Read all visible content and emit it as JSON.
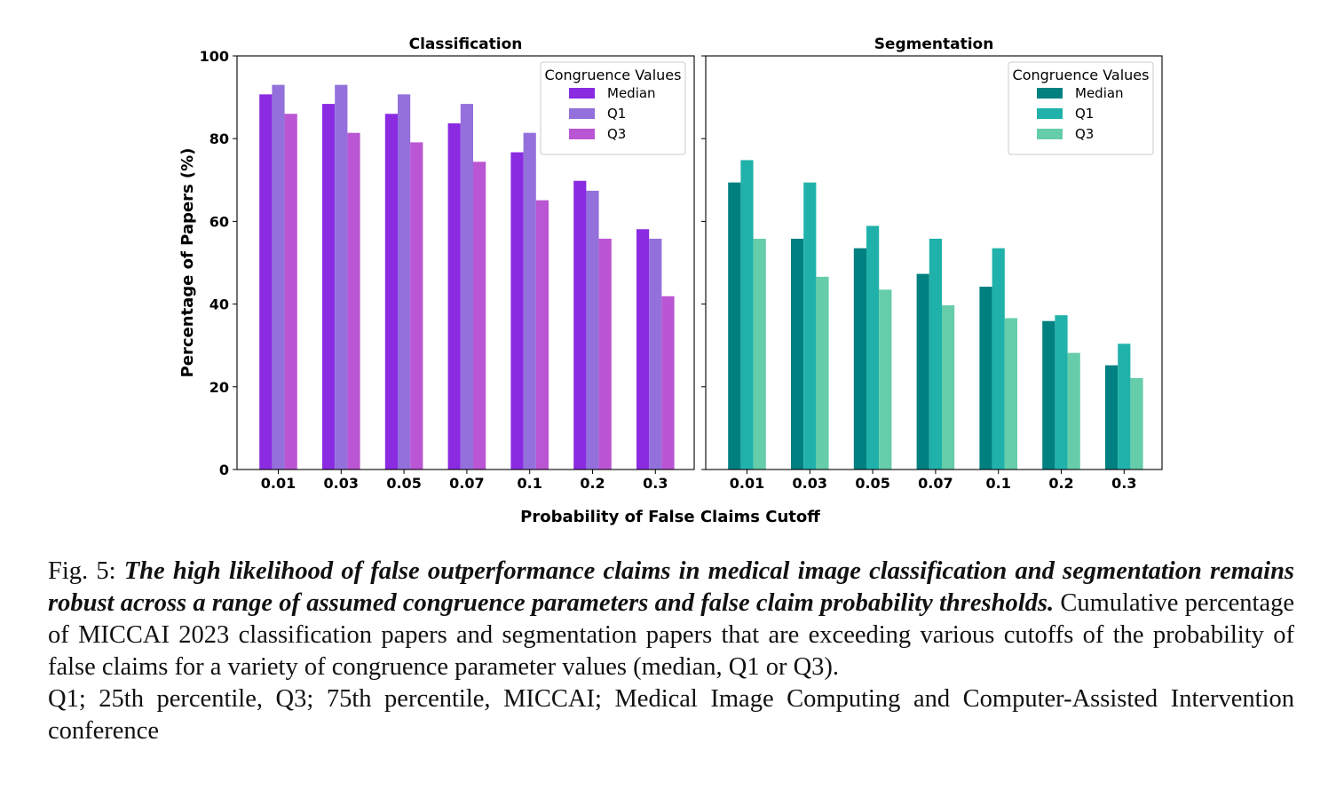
{
  "chart_data": [
    {
      "type": "bar",
      "title": "Classification",
      "categories": [
        "0.01",
        "0.03",
        "0.05",
        "0.07",
        "0.1",
        "0.2",
        "0.3"
      ],
      "series": [
        {
          "name": "Median",
          "color": "#8a2be2",
          "values": [
            90.7,
            88.4,
            86.0,
            83.7,
            76.7,
            69.8,
            58.1
          ]
        },
        {
          "name": "Q1",
          "color": "#9370db",
          "values": [
            93.0,
            93.0,
            90.7,
            88.4,
            81.4,
            67.4,
            55.8
          ]
        },
        {
          "name": "Q3",
          "color": "#ba55d3",
          "values": [
            86.0,
            81.4,
            79.1,
            74.4,
            65.1,
            55.8,
            41.9
          ]
        }
      ],
      "legend_title": "Congruence Values",
      "legend_position": "upper right",
      "ylim": [
        0,
        100
      ],
      "yticks": [
        0,
        20,
        40,
        60,
        80,
        100
      ],
      "ylabel": "Percentage of Papers (%)"
    },
    {
      "type": "bar",
      "title": "Segmentation",
      "categories": [
        "0.01",
        "0.03",
        "0.05",
        "0.07",
        "0.1",
        "0.2",
        "0.3"
      ],
      "series": [
        {
          "name": "Median",
          "color": "#008080",
          "values": [
            69.4,
            55.8,
            53.5,
            47.3,
            44.2,
            35.9,
            25.2
          ]
        },
        {
          "name": "Q1",
          "color": "#20b2aa",
          "values": [
            74.8,
            69.4,
            58.9,
            55.8,
            53.5,
            37.3,
            30.4
          ]
        },
        {
          "name": "Q3",
          "color": "#66cdaa",
          "values": [
            55.8,
            46.6,
            43.5,
            39.7,
            36.6,
            28.2,
            22.1
          ]
        }
      ],
      "legend_title": "Congruence Values",
      "legend_position": "upper right",
      "ylim": [
        0,
        100
      ],
      "yticks": [
        0,
        20,
        40,
        60,
        80,
        100
      ]
    }
  ],
  "shared_xlabel": "Probability of False Claims Cutoff",
  "caption": {
    "label": "Fig. 5:",
    "title": "The high likelihood of false outperformance claims in medical image classification and segmentation remains robust across a range of assumed congruence parameters and false claim probability thresholds.",
    "body": "Cumulative percentage of MICCAI 2023 classification papers and segmentation papers that are exceeding various cutoffs of the probability of false claims for a variety of congruence parameter values (median, Q1 or Q3).",
    "abbreviations": "Q1; 25th percentile, Q3; 75th percentile, MICCAI; Medical Image Computing and Computer-Assisted Intervention conference"
  }
}
